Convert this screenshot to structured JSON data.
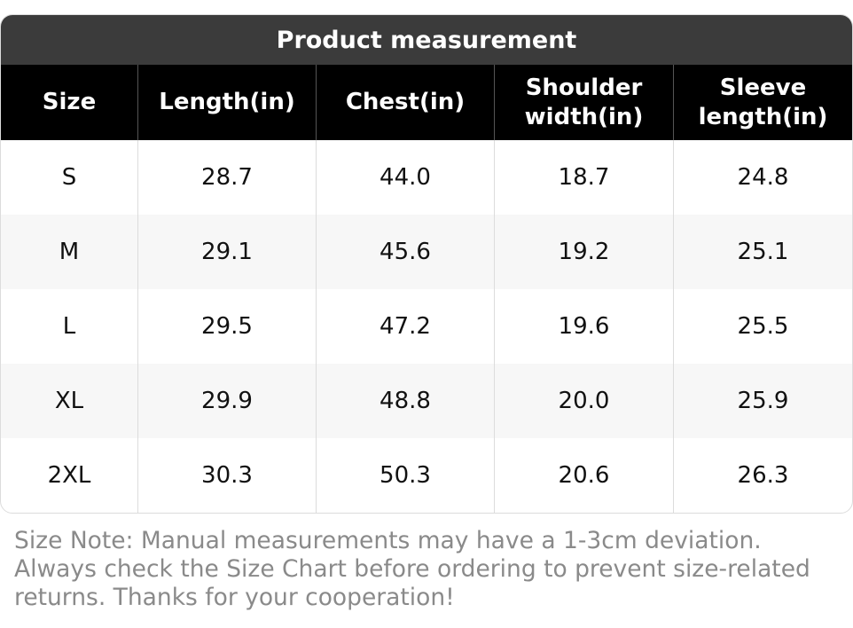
{
  "header": {
    "title": "Product measurement"
  },
  "table": {
    "columns": [
      "Size",
      "Length(in)",
      "Chest(in)",
      "Shoulder width(in)",
      "Sleeve length(in)"
    ],
    "rows": [
      [
        "S",
        "28.7",
        "44.0",
        "18.7",
        "24.8"
      ],
      [
        "M",
        "29.1",
        "45.6",
        "19.2",
        "25.1"
      ],
      [
        "L",
        "29.5",
        "47.2",
        "19.6",
        "25.5"
      ],
      [
        "XL",
        "29.9",
        "48.8",
        "20.0",
        "25.9"
      ],
      [
        "2XL",
        "30.3",
        "50.3",
        "20.6",
        "26.3"
      ]
    ]
  },
  "note": "Size Note: Manual measurements may have a 1-3cm deviation. Always check the Size Chart before ordering to prevent size-related returns. Thanks for your cooperation!"
}
